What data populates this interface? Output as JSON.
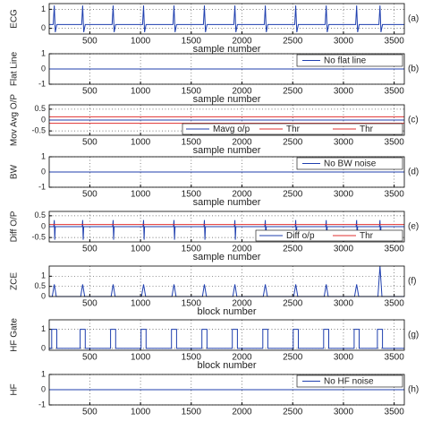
{
  "chart_data": [
    {
      "type": "line",
      "ylabel": "ECG",
      "xlabel": "sample number",
      "panel_label": "(a)",
      "xlim": [
        100,
        3600
      ],
      "xticks": [
        500,
        1000,
        1500,
        2000,
        2500,
        3000,
        3500
      ],
      "ylim": [
        -0.3,
        1.3
      ],
      "yticks": [
        0,
        1
      ],
      "grid": true,
      "x": [
        100,
        140,
        150,
        160,
        175,
        420,
        430,
        440,
        455,
        720,
        730,
        740,
        755,
        1020,
        1030,
        1040,
        1055,
        1320,
        1330,
        1340,
        1355,
        1620,
        1630,
        1640,
        1655,
        1920,
        1930,
        1940,
        1955,
        2220,
        2230,
        2240,
        2255,
        2520,
        2530,
        2540,
        2555,
        2820,
        2830,
        2840,
        2855,
        3120,
        3130,
        3140,
        3155,
        3350,
        3360,
        3370,
        3385,
        3600
      ],
      "series": [
        {
          "color": "#1f3fae",
          "values": [
            0.2,
            0.2,
            1.2,
            -0.2,
            0.2,
            0.2,
            1.2,
            -0.2,
            0.2,
            0.2,
            1.2,
            -0.2,
            0.2,
            0.2,
            1.2,
            -0.2,
            0.2,
            0.2,
            1.2,
            -0.2,
            0.2,
            0.2,
            1.2,
            -0.2,
            0.2,
            0.2,
            1.2,
            -0.2,
            0.2,
            0.2,
            1.2,
            -0.2,
            0.2,
            0.2,
            1.2,
            -0.2,
            0.2,
            0.2,
            1.2,
            -0.2,
            0.2,
            0.2,
            1.2,
            -0.2,
            0.2,
            0.2,
            1.2,
            -0.2,
            0.2,
            0.2
          ]
        }
      ]
    },
    {
      "type": "line",
      "ylabel": "Flat Line",
      "xlabel": "sample number",
      "panel_label": "(b)",
      "legend": "upper right",
      "xlim": [
        100,
        3600
      ],
      "xticks": [
        500,
        1000,
        1500,
        2000,
        2500,
        3000,
        3500
      ],
      "ylim": [
        -1,
        1
      ],
      "yticks": [
        -1,
        0,
        1
      ],
      "grid": true,
      "x": [
        100,
        3600
      ],
      "series": [
        {
          "name": "No flat line",
          "color": "#1f3fae",
          "values": [
            0,
            0
          ]
        }
      ]
    },
    {
      "type": "line",
      "ylabel": "Mov Avg O/P",
      "xlabel": "sample number",
      "panel_label": "(c)",
      "legend": "lower right",
      "xlim": [
        100,
        3600
      ],
      "xticks": [
        500,
        1000,
        1500,
        2000,
        2500,
        3000,
        3500
      ],
      "ylim": [
        -0.7,
        0.7
      ],
      "yticks": [
        -0.5,
        0,
        0.5
      ],
      "grid": true,
      "x": [
        100,
        3600
      ],
      "series": [
        {
          "name": "Mavg o/p",
          "color": "#1f3fae",
          "values": [
            0,
            0
          ]
        },
        {
          "name": "Thr",
          "color": "#e03030",
          "values": [
            0.15,
            0.15
          ]
        },
        {
          "name": "Thr",
          "color": "#e03030",
          "values": [
            -0.15,
            -0.15
          ]
        }
      ]
    },
    {
      "type": "line",
      "ylabel": "BW",
      "xlabel": "sample number",
      "panel_label": "(d)",
      "legend": "upper right",
      "xlim": [
        100,
        3600
      ],
      "xticks": [
        500,
        1000,
        1500,
        2000,
        2500,
        3000,
        3500
      ],
      "ylim": [
        -1,
        1
      ],
      "yticks": [
        -1,
        0,
        1
      ],
      "grid": true,
      "x": [
        100,
        3600
      ],
      "series": [
        {
          "name": "No BW noise",
          "color": "#1f3fae",
          "values": [
            0,
            0
          ]
        }
      ]
    },
    {
      "type": "line",
      "ylabel": "Diff O/P",
      "xlabel": "sample number",
      "panel_label": "(e)",
      "legend": "lower right",
      "xlim": [
        100,
        3600
      ],
      "xticks": [
        500,
        1000,
        1500,
        2000,
        2500,
        3000,
        3500
      ],
      "ylim": [
        -0.7,
        0.7
      ],
      "yticks": [
        -0.5,
        0,
        0.5
      ],
      "grid": true,
      "x": [
        100,
        145,
        150,
        155,
        160,
        425,
        430,
        435,
        440,
        725,
        730,
        735,
        740,
        1025,
        1030,
        1035,
        1040,
        1325,
        1330,
        1335,
        1340,
        1625,
        1630,
        1635,
        1640,
        1925,
        1930,
        1935,
        1940,
        2225,
        2230,
        2235,
        2240,
        2525,
        2530,
        2535,
        2540,
        2825,
        2830,
        2835,
        2840,
        3125,
        3130,
        3135,
        3140,
        3355,
        3360,
        3365,
        3370,
        3600
      ],
      "series": [
        {
          "name": "Diff o/p",
          "color": "#1f3fae",
          "values": [
            0,
            0,
            0.3,
            -0.6,
            0,
            0,
            0.3,
            -0.6,
            0,
            0,
            0.3,
            -0.6,
            0,
            0,
            0.3,
            -0.6,
            0,
            0,
            0.3,
            -0.6,
            0,
            0,
            0.3,
            -0.6,
            0,
            0,
            0.3,
            -0.6,
            0,
            0,
            0.3,
            -0.6,
            0,
            0,
            0.3,
            -0.6,
            0,
            0,
            0.3,
            -0.6,
            0,
            0,
            0.3,
            -0.6,
            0,
            0,
            0.3,
            -0.6,
            0,
            0
          ]
        },
        {
          "name": "Thr",
          "color": "#e03030",
          "values": [
            0.1,
            0.1,
            0.1,
            0.1,
            0.1,
            0.1,
            0.1,
            0.1,
            0.1,
            0.1,
            0.1,
            0.1,
            0.1,
            0.1,
            0.1,
            0.1,
            0.1,
            0.1,
            0.1,
            0.1,
            0.1,
            0.1,
            0.1,
            0.1,
            0.1,
            0.1,
            0.1,
            0.1,
            0.1,
            0.1,
            0.1,
            0.1,
            0.1,
            0.1,
            0.1,
            0.1,
            0.1,
            0.1,
            0.1,
            0.1,
            0.1,
            0.1,
            0.1,
            0.1,
            0.1,
            0.1,
            0.1,
            0.1,
            0.1,
            0.1
          ]
        }
      ]
    },
    {
      "type": "line",
      "ylabel": "ZCE",
      "xlabel": "block number",
      "panel_label": "(f)",
      "xlim": [
        100,
        3600
      ],
      "xticks": [
        500,
        1000,
        1500,
        2000,
        2500,
        3000,
        3500
      ],
      "ylim": [
        0,
        1.5
      ],
      "yticks": [
        0,
        0.5,
        1
      ],
      "grid": true,
      "x": [
        100,
        130,
        150,
        170,
        410,
        430,
        450,
        710,
        730,
        750,
        1010,
        1030,
        1050,
        1310,
        1330,
        1350,
        1610,
        1630,
        1650,
        1910,
        1930,
        1950,
        2210,
        2230,
        2250,
        2510,
        2530,
        2550,
        2810,
        2830,
        2850,
        3110,
        3130,
        3150,
        3340,
        3360,
        3380,
        3600
      ],
      "series": [
        {
          "color": "#1f3fae",
          "values": [
            0,
            0,
            0.6,
            0,
            0,
            0.6,
            0,
            0,
            0.6,
            0,
            0,
            0.6,
            0,
            0,
            0.6,
            0,
            0,
            0.6,
            0,
            0,
            0.6,
            0,
            0,
            0.6,
            0,
            0,
            0.6,
            0,
            0,
            0.6,
            0,
            0,
            0.6,
            0,
            0,
            1.5,
            0,
            0
          ]
        }
      ]
    },
    {
      "type": "line",
      "ylabel": "HF Gate",
      "xlabel": "block number",
      "panel_label": "(g)",
      "xlim": [
        100,
        3600
      ],
      "xticks": [
        500,
        1000,
        1500,
        2000,
        2500,
        3000,
        3500
      ],
      "ylim": [
        -0.1,
        1.5
      ],
      "yticks": [
        0,
        1
      ],
      "grid": true,
      "x": [
        100,
        125,
        125,
        175,
        175,
        405,
        405,
        455,
        455,
        705,
        705,
        755,
        755,
        1005,
        1005,
        1055,
        1055,
        1305,
        1305,
        1355,
        1355,
        1605,
        1605,
        1655,
        1655,
        1905,
        1905,
        1955,
        1955,
        2205,
        2205,
        2255,
        2255,
        2505,
        2505,
        2555,
        2555,
        2805,
        2805,
        2855,
        2855,
        3105,
        3105,
        3155,
        3155,
        3335,
        3335,
        3385,
        3385,
        3600
      ],
      "series": [
        {
          "color": "#1f3fae",
          "values": [
            0,
            0,
            1,
            1,
            0,
            0,
            1,
            1,
            0,
            0,
            1,
            1,
            0,
            0,
            1,
            1,
            0,
            0,
            1,
            1,
            0,
            0,
            1,
            1,
            0,
            0,
            1,
            1,
            0,
            0,
            1,
            1,
            0,
            0,
            1,
            1,
            0,
            0,
            1,
            1,
            0,
            0,
            1,
            1,
            0,
            0,
            1,
            1,
            0,
            0
          ]
        }
      ]
    },
    {
      "type": "line",
      "ylabel": "HF",
      "panel_label": "(h)",
      "legend": "upper right",
      "xlim": [
        100,
        3600
      ],
      "xticks": [
        500,
        1000,
        1500,
        2000,
        2500,
        3000,
        3500
      ],
      "ylim": [
        -1,
        1
      ],
      "yticks": [
        -1,
        0,
        1
      ],
      "grid": true,
      "x": [
        100,
        3600
      ],
      "series": [
        {
          "name": "No HF noise",
          "color": "#1f3fae",
          "values": [
            0,
            0
          ]
        }
      ]
    }
  ]
}
